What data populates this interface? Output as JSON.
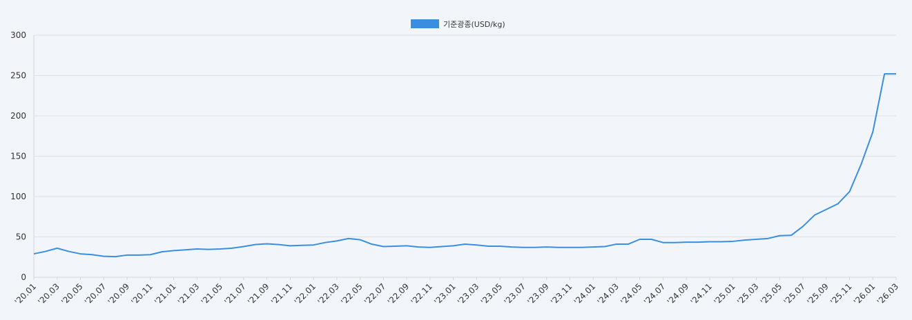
{
  "chart_data": {
    "type": "line",
    "title": "",
    "xlabel": "",
    "ylabel": "",
    "legend": {
      "position": "top-center"
    },
    "series": [
      {
        "name": "기준광종(USD/kg)",
        "color": "#3a8ee0",
        "x": [
          "'20.01",
          "'20.02",
          "'20.03",
          "'20.04",
          "'20.05",
          "'20.06",
          "'20.07",
          "'20.08",
          "'20.09",
          "'20.10",
          "'20.11",
          "'20.12",
          "'21.01",
          "'21.02",
          "'21.03",
          "'21.04",
          "'21.05",
          "'21.06",
          "'21.07",
          "'21.08",
          "'21.09",
          "'21.10",
          "'21.11",
          "'21.12",
          "'22.01",
          "'22.02",
          "'22.03",
          "'22.04",
          "'22.05",
          "'22.06",
          "'22.07",
          "'22.08",
          "'22.09",
          "'22.10",
          "'22.11",
          "'22.12",
          "'23.01",
          "'23.02",
          "'23.03",
          "'23.04",
          "'23.05",
          "'23.06",
          "'23.07",
          "'23.08",
          "'23.09",
          "'23.10",
          "'23.11",
          "'23.12",
          "'24.01",
          "'24.02",
          "'24.03",
          "'24.04",
          "'24.05",
          "'24.06",
          "'24.07",
          "'24.08",
          "'24.09",
          "'24.10",
          "'24.11",
          "'24.12",
          "'25.01",
          "'25.02",
          "'25.03",
          "'25.04",
          "'25.05",
          "'25.06",
          "'25.07",
          "'25.08",
          "'25.09",
          "'25.10",
          "'25.11",
          "'25.12",
          "'26.01",
          "'26.02",
          "'26.03"
        ],
        "values": [
          29,
          32,
          36,
          32,
          29,
          28,
          26,
          25.5,
          27.5,
          27.5,
          28,
          31.5,
          33,
          34,
          35,
          34.5,
          35,
          36,
          38,
          40.5,
          41.5,
          40.5,
          39,
          39.5,
          40,
          43,
          45,
          48,
          46.5,
          41,
          38,
          38.5,
          39,
          37.5,
          37,
          38,
          39,
          41,
          40,
          38.5,
          38.5,
          37.5,
          37,
          37,
          37.5,
          37,
          37,
          37,
          37.5,
          38,
          41,
          41,
          47,
          47,
          43,
          43,
          43.5,
          43.5,
          44,
          44,
          44.5,
          46,
          47,
          48,
          51.5,
          52,
          63,
          77,
          84,
          91,
          106,
          140,
          180,
          252,
          252
        ]
      }
    ],
    "x_tick_labels": [
      "'20.01",
      "'20.03",
      "'20.05",
      "'20.07",
      "'20.09",
      "'20.11",
      "'21.01",
      "'21.03",
      "'21.05",
      "'21.07",
      "'21.09",
      "'21.11",
      "'22.01",
      "'22.03",
      "'22.05",
      "'22.07",
      "'22.09",
      "'22.11",
      "'23.01",
      "'23.03",
      "'23.05",
      "'23.07",
      "'23.09",
      "'23.11",
      "'24.01",
      "'24.03",
      "'24.05",
      "'24.07",
      "'24.09",
      "'24.11",
      "'25.01",
      "'25.03",
      "'25.05",
      "'25.07",
      "'25.09",
      "'25.11",
      "'26.01",
      "'26.03"
    ],
    "y_ticks": [
      "0",
      "50",
      "100",
      "150",
      "200",
      "250",
      "300"
    ],
    "ylim": [
      0,
      300
    ],
    "grid": true
  }
}
